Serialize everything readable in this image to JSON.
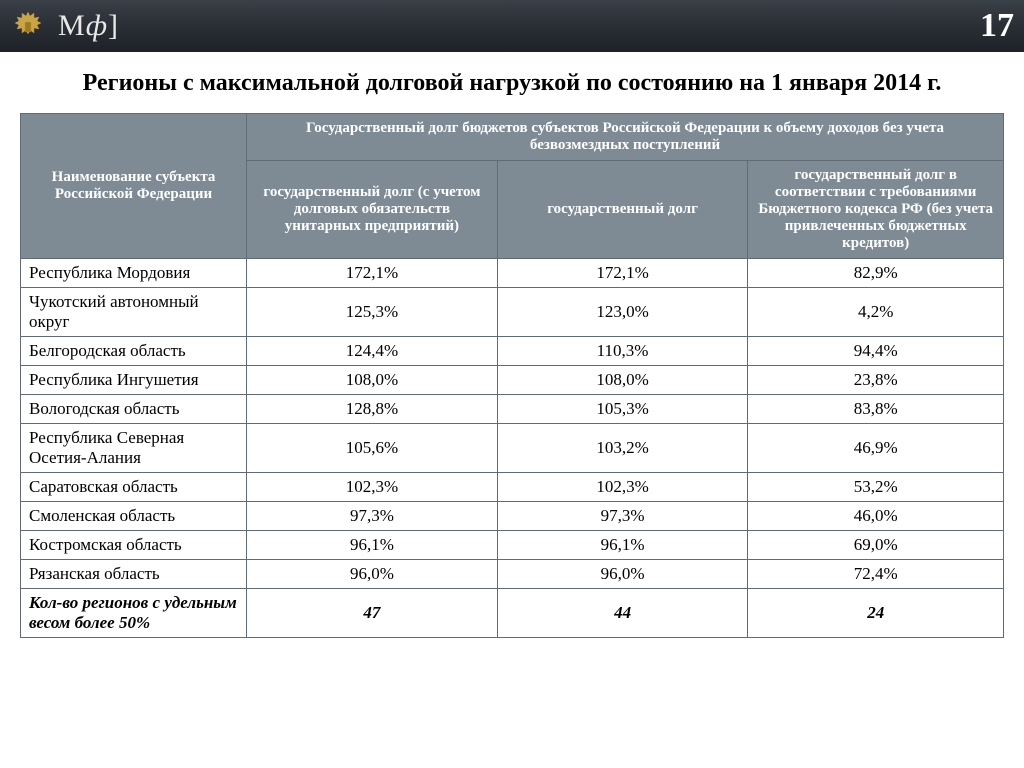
{
  "header": {
    "logo_text_m": "М",
    "logo_text_phi": "ф",
    "logo_text_bracket": "]",
    "page_num": "17"
  },
  "title": "Регионы с максимальной долговой нагрузкой по состоянию на 1 января 2014 г.",
  "table": {
    "col_name_header": "Наименование субъекта Российской Федерации",
    "group_header": "Государственный долг бюджетов субъектов Российской Федерации к объему доходов без учета безвозмездных поступлений",
    "col1_header": "государственный долг\n(с учетом долговых обязательств унитарных предприятий)",
    "col2_header": "государственный долг",
    "col3_header": "государственный долг в соответствии с требованиями Бюджетного кодекса РФ\n(без учета привлеченных бюджетных кредитов)",
    "rows": [
      {
        "name": "Республика Мордовия",
        "c1": "172,1%",
        "c2": "172,1%",
        "c3": "82,9%"
      },
      {
        "name": "Чукотский автономный округ",
        "c1": "125,3%",
        "c2": "123,0%",
        "c3": "4,2%"
      },
      {
        "name": "Белгородская область",
        "c1": "124,4%",
        "c2": "110,3%",
        "c3": "94,4%"
      },
      {
        "name": "Республика Ингушетия",
        "c1": "108,0%",
        "c2": "108,0%",
        "c3": "23,8%"
      },
      {
        "name": "Вологодская область",
        "c1": "128,8%",
        "c2": "105,3%",
        "c3": "83,8%"
      },
      {
        "name": "Республика Северная Осетия-Алания",
        "c1": "105,6%",
        "c2": "103,2%",
        "c3": "46,9%"
      },
      {
        "name": "Саратовская область",
        "c1": "102,3%",
        "c2": "102,3%",
        "c3": "53,2%"
      },
      {
        "name": "Смоленская область",
        "c1": "97,3%",
        "c2": "97,3%",
        "c3": "46,0%"
      },
      {
        "name": "Костромская область",
        "c1": "96,1%",
        "c2": "96,1%",
        "c3": "69,0%"
      },
      {
        "name": "Рязанская область",
        "c1": "96,0%",
        "c2": "96,0%",
        "c3": "72,4%"
      }
    ],
    "summary": {
      "name": "Кол-во регионов с удельным весом более 50%",
      "c1": "47",
      "c2": "44",
      "c3": "24"
    }
  },
  "colors": {
    "header_bg": "#7e8a94",
    "border": "#606b75",
    "topbar_grad_top": "#3a4048",
    "topbar_grad_bot": "#1e2228"
  }
}
